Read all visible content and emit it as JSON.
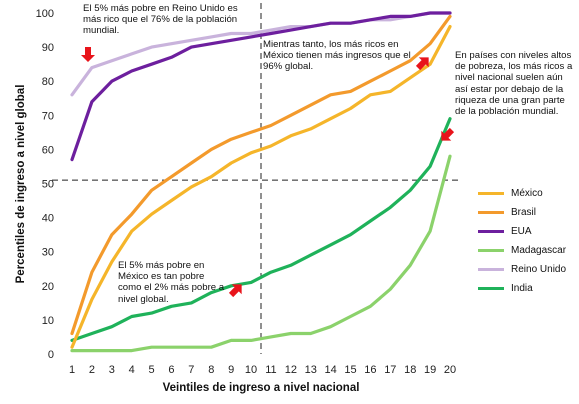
{
  "chart_data": {
    "type": "line",
    "xlabel": "Veintiles de ingreso a nivel nacional",
    "ylabel": "Percentiles de ingreso a nivel global",
    "x": [
      1,
      2,
      3,
      4,
      5,
      6,
      7,
      8,
      9,
      10,
      11,
      12,
      13,
      14,
      15,
      16,
      17,
      18,
      19,
      20
    ],
    "xlim": [
      1,
      20
    ],
    "ylim": [
      0,
      100
    ],
    "yticks": [
      0,
      10,
      20,
      30,
      40,
      50,
      60,
      70,
      80,
      90,
      100
    ],
    "grid": false,
    "legend_position": "right",
    "reference_lines": {
      "x": 10.5,
      "y": 51
    },
    "series": [
      {
        "name": "México",
        "color": "#f5b52a",
        "values": [
          2,
          16,
          27,
          36,
          41,
          45,
          49,
          52,
          56,
          59,
          61,
          64,
          66,
          69,
          72,
          76,
          77,
          81,
          85,
          96
        ]
      },
      {
        "name": "Brasil",
        "color": "#f39a2c",
        "values": [
          6,
          24,
          35,
          41,
          48,
          52,
          56,
          60,
          63,
          65,
          67,
          70,
          73,
          76,
          77,
          80,
          83,
          86,
          91,
          99
        ]
      },
      {
        "name": "EUA",
        "color": "#6d1f9e",
        "values": [
          57,
          74,
          80,
          83,
          85,
          87,
          90,
          91,
          92,
          93,
          94,
          95,
          96,
          97,
          97,
          98,
          99,
          99,
          100,
          100
        ]
      },
      {
        "name": "Madagascar",
        "color": "#8bd26b",
        "values": [
          1,
          1,
          1,
          1,
          2,
          2,
          2,
          2,
          4,
          4,
          5,
          6,
          6,
          8,
          11,
          14,
          19,
          26,
          36,
          58
        ]
      },
      {
        "name": "Reino Unido",
        "color": "#c9b3dc",
        "values": [
          76,
          84,
          86,
          88,
          90,
          91,
          92,
          93,
          94,
          94,
          95,
          96,
          96,
          97,
          97,
          98,
          98,
          99,
          100,
          100
        ]
      },
      {
        "name": "India",
        "color": "#1fb25a",
        "values": [
          4,
          6,
          8,
          11,
          12,
          14,
          15,
          18,
          20,
          21,
          24,
          26,
          29,
          32,
          35,
          39,
          43,
          48,
          55,
          69
        ]
      }
    ],
    "annotations": [
      "El 5% más pobre en Reino Unido es más rico que el 76% de la población mundial.",
      "Mientras tanto, los más ricos en México tienen más ingresos que el 96% global.",
      "En países con niveles altos de pobreza, los más ricos a nivel nacional suelen aún así estar por debajo de la riqueza de una gran parte de la población mundial.",
      "El 5% más pobre en México es tan pobre como el 2% más pobre a nivel global."
    ]
  },
  "colors": {
    "callout_arrow": "#e8141b"
  }
}
